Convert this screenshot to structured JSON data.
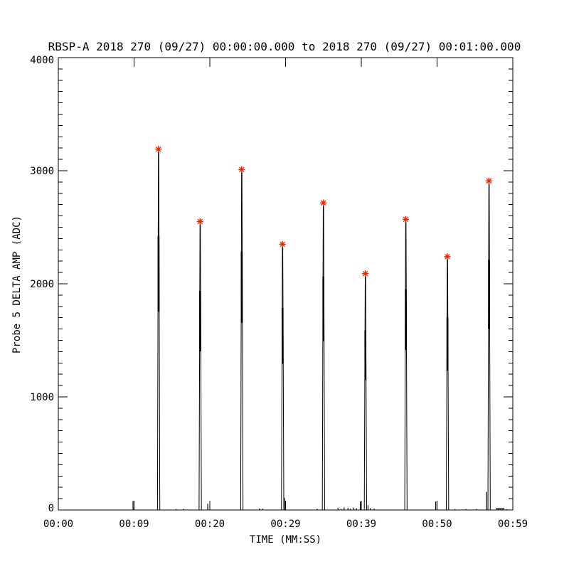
{
  "title": "RBSP-A 2018 270 (09/27) 00:00:00.000 to 2018 270 (09/27) 00:01:00.000",
  "chart_data": {
    "type": "line",
    "title": "RBSP-A 2018 270 (09/27) 00:00:00.000 to 2018 270 (09/27) 00:01:00.000",
    "xlabel": "TIME (MM:SS)",
    "ylabel": "Probe 5 DELTA AMP (ADC)",
    "x_range_seconds": [
      0,
      59
    ],
    "ylim": [
      0,
      4000
    ],
    "x_tick_labels": [
      "00:00",
      "00:09",
      "00:20",
      "00:29",
      "00:39",
      "00:50",
      "00:59"
    ],
    "y_tick_values": [
      0,
      1000,
      2000,
      3000,
      4000
    ],
    "y_minor_tick_interval": 100,
    "grid": false,
    "legend": "none",
    "line_color": "#000000",
    "background_color": "#ffffff",
    "marker": {
      "symbol": "asterisk",
      "color": "#ee2200"
    },
    "spikes": [
      {
        "t": 13.0,
        "peak": 3190
      },
      {
        "t": 18.4,
        "peak": 2550
      },
      {
        "t": 23.8,
        "peak": 3010
      },
      {
        "t": 29.1,
        "peak": 2350
      },
      {
        "t": 34.4,
        "peak": 2715
      },
      {
        "t": 39.85,
        "peak": 2090
      },
      {
        "t": 45.1,
        "peak": 2570
      },
      {
        "t": 50.5,
        "peak": 2240
      },
      {
        "t": 55.9,
        "peak": 2910
      }
    ],
    "baseline_noise": [
      {
        "t": 9.7,
        "value": 80
      },
      {
        "t": 15.3,
        "value": 8
      },
      {
        "t": 16.3,
        "value": 8
      },
      {
        "t": 19.4,
        "value": 55
      },
      {
        "t": 26.1,
        "value": 12
      },
      {
        "t": 26.5,
        "value": 12
      },
      {
        "t": 29.35,
        "value": 105
      },
      {
        "t": 33.6,
        "value": 10
      },
      {
        "t": 36.3,
        "value": 18
      },
      {
        "t": 36.7,
        "value": 10
      },
      {
        "t": 37.1,
        "value": 22
      },
      {
        "t": 37.6,
        "value": 18
      },
      {
        "t": 37.9,
        "value": 10
      },
      {
        "t": 38.3,
        "value": 20
      },
      {
        "t": 38.7,
        "value": 15
      },
      {
        "t": 39.2,
        "value": 75
      },
      {
        "t": 40.2,
        "value": 42
      },
      {
        "t": 40.5,
        "value": 15
      },
      {
        "t": 41.0,
        "value": 12
      },
      {
        "t": 49.0,
        "value": 75
      },
      {
        "t": 51.5,
        "value": 8
      },
      {
        "t": 52.9,
        "value": 8
      },
      {
        "t": 54.3,
        "value": 8
      },
      {
        "t": 55.6,
        "value": 160
      },
      {
        "t": 58.2,
        "value": 6
      }
    ],
    "baseline_plateau": {
      "t_start": 56.8,
      "t_end": 57.9,
      "value": 10
    }
  }
}
